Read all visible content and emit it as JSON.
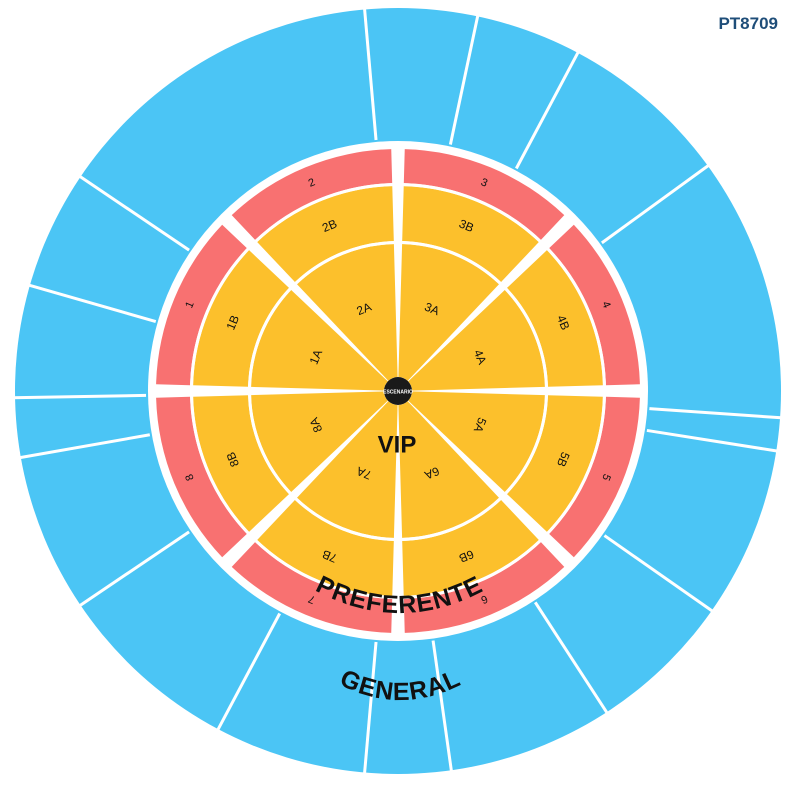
{
  "event_code": "PT8709",
  "stage_label": "ESCENARIO",
  "zones": {
    "general": {
      "label": "GENERAL",
      "color": "#4bc5f5"
    },
    "preferente": {
      "label": "PREFERENTE",
      "color": "#f87171"
    },
    "vip": {
      "label": "VIP",
      "color": "#fcc02c"
    }
  },
  "vip_outer_sections": [
    "1B",
    "2B",
    "3B",
    "4B",
    "5B",
    "6B",
    "7B",
    "8B"
  ],
  "vip_inner_sections": [
    "1A",
    "2A",
    "3A",
    "4A",
    "5A",
    "6A",
    "7A",
    "8A"
  ],
  "preferente_sections": [
    "1",
    "2",
    "3",
    "4",
    "5",
    "6",
    "7",
    "8"
  ]
}
